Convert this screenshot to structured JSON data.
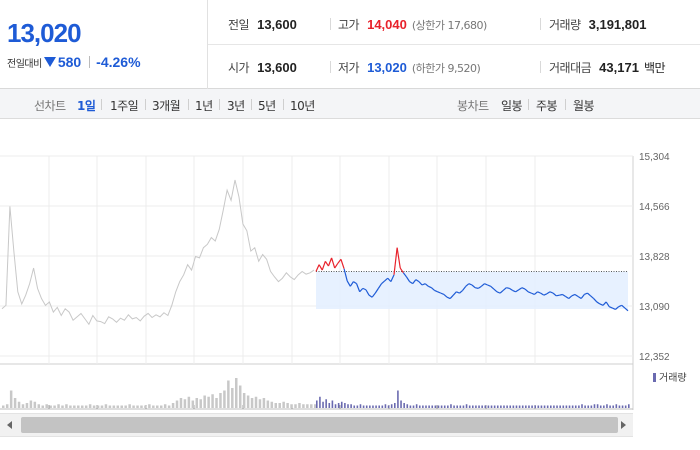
{
  "quote": {
    "price": "13,020",
    "change_label": "전일대비",
    "change_direction_icon": "down-triangle-icon",
    "change_amount": "580",
    "change_percent": "-4.26%",
    "prev_close": {
      "label": "전일",
      "value": "13,600"
    },
    "high": {
      "label": "고가",
      "value": "14,040",
      "sub": "(상한가 17,680)"
    },
    "volume": {
      "label": "거래량",
      "value": "3,191,801"
    },
    "open": {
      "label": "시가",
      "value": "13,600"
    },
    "low": {
      "label": "저가",
      "value": "13,020",
      "sub": "(하한가 9,520)"
    },
    "turnover": {
      "label": "거래대금",
      "value": "43,171",
      "unit": "백만"
    }
  },
  "tabs": {
    "line_chart_label": "선차트",
    "periods": [
      "1일",
      "1주일",
      "3개월",
      "1년",
      "3년",
      "5년",
      "10년"
    ],
    "active_period": "1일",
    "candle_chart_label": "봉차트",
    "candles": [
      "일봉",
      "주봉",
      "월봉"
    ]
  },
  "colors": {
    "up": "#e8222b",
    "down": "#1e5bd6",
    "prev_day": "#c8c8c8",
    "volume_prev": "#c8c8c8",
    "volume_today": "#6a6ab0"
  },
  "chart_data": {
    "type": "line",
    "y_ticks": [
      "15,304",
      "14,566",
      "13,828",
      "13,090",
      "12,352"
    ],
    "ylim": [
      12352,
      15304
    ],
    "reference_price": 13600,
    "volume_legend": "거래량",
    "previous_session": [
      13050,
      13100,
      14560,
      13900,
      13300,
      13120,
      13250,
      13420,
      13650,
      13350,
      13200,
      13100,
      13150,
      13000,
      13070,
      12950,
      13050,
      13000,
      12880,
      12930,
      12980,
      12900,
      12820,
      12950,
      12870,
      12860,
      12830,
      12930,
      12900,
      12850,
      12910,
      12880,
      12960,
      12900,
      12920,
      12870,
      12940,
      12980,
      12920,
      12960,
      12930,
      12990,
      12950,
      13100,
      13300,
      13450,
      13550,
      13700,
      13620,
      13820,
      13800,
      13950,
      14000,
      14100,
      14050,
      14220,
      14500,
      14800,
      14650,
      14950,
      14700,
      14300,
      14200,
      13900,
      13950,
      13750,
      13850,
      13780,
      13600,
      13520,
      13450,
      13500,
      13580,
      13520,
      13480,
      13550,
      13600,
      13560,
      13580,
      13620
    ],
    "today_session": [
      13600,
      13700,
      13620,
      13750,
      13680,
      13800,
      13650,
      13720,
      13780,
      13640,
      13460,
      13380,
      13450,
      13420,
      13300,
      13350,
      13330,
      13250,
      13220,
      13280,
      13350,
      13420,
      13460,
      13500,
      13450,
      13550,
      13950,
      13650,
      13580,
      13520,
      13450,
      13420,
      13480,
      13450,
      13400,
      13420,
      13380,
      13360,
      13320,
      13300,
      13280,
      13260,
      13220,
      13200,
      13250,
      13300,
      13280,
      13320,
      13380,
      13420,
      13400,
      13360,
      13350,
      13380,
      13420,
      13400,
      13380,
      13340,
      13300,
      13280,
      13320,
      13360,
      13350,
      13320,
      13300,
      13330,
      13360,
      13340,
      13300,
      13280,
      13260,
      13300,
      13280,
      13250,
      13270,
      13300,
      13280,
      13240,
      13250,
      13260,
      13230,
      13200,
      13240,
      13260,
      13230,
      13200,
      13260,
      13280,
      13240,
      13200,
      13150,
      13120,
      13100,
      13150,
      13080,
      13060,
      13040,
      13080,
      13100,
      13060,
      13020
    ],
    "previous_volume": [
      2,
      3,
      14,
      8,
      5,
      3,
      4,
      6,
      5,
      3,
      2,
      3,
      2,
      2,
      3,
      2,
      3,
      2,
      2,
      2,
      2,
      2,
      3,
      2,
      2,
      2,
      3,
      2,
      2,
      2,
      2,
      2,
      3,
      2,
      2,
      2,
      2,
      3,
      2,
      2,
      2,
      3,
      2,
      4,
      6,
      8,
      7,
      9,
      6,
      8,
      7,
      10,
      9,
      11,
      8,
      12,
      14,
      22,
      16,
      24,
      18,
      12,
      10,
      8,
      9,
      7,
      8,
      6,
      5,
      4,
      4,
      5,
      4,
      3,
      3,
      4,
      3,
      3,
      3,
      3
    ],
    "today_volume": [
      6,
      9,
      5,
      7,
      4,
      6,
      3,
      4,
      5,
      4,
      3,
      3,
      2,
      2,
      3,
      2,
      2,
      2,
      2,
      2,
      2,
      2,
      3,
      2,
      3,
      4,
      14,
      6,
      4,
      3,
      2,
      2,
      3,
      2,
      2,
      2,
      2,
      2,
      2,
      2,
      2,
      2,
      2,
      3,
      2,
      2,
      2,
      2,
      3,
      2,
      2,
      2,
      2,
      2,
      2,
      2,
      2,
      2,
      2,
      2,
      2,
      2,
      2,
      2,
      2,
      2,
      2,
      2,
      2,
      2,
      2,
      2,
      2,
      2,
      2,
      2,
      2,
      2,
      2,
      2,
      2,
      2,
      2,
      2,
      2,
      3,
      2,
      2,
      2,
      3,
      3,
      2,
      2,
      3,
      2,
      2,
      3,
      2,
      2,
      2,
      3
    ]
  }
}
